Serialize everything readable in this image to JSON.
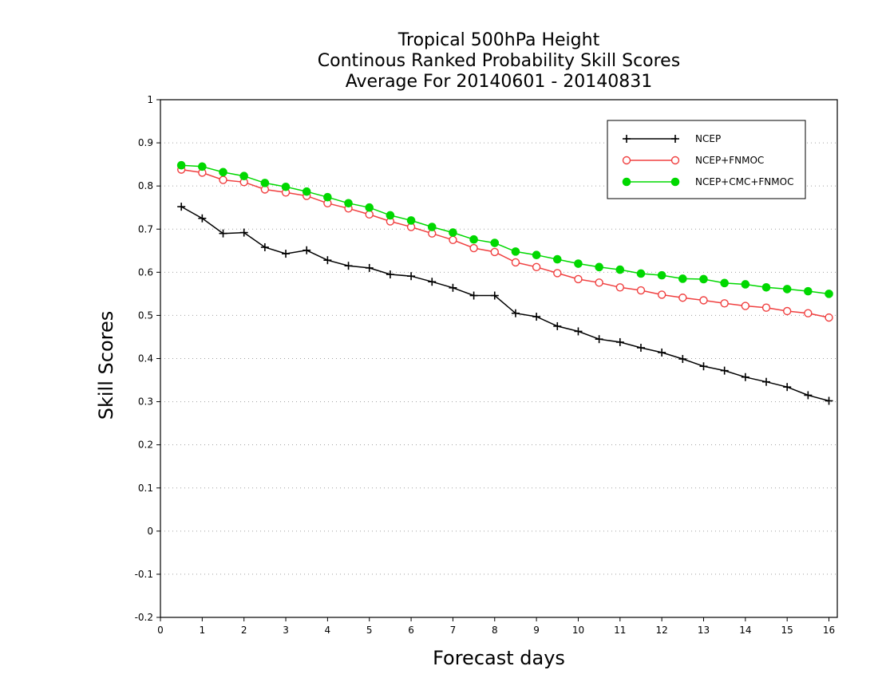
{
  "chart_data": {
    "type": "line",
    "title_lines": [
      "Tropical 500hPa Height",
      "Continous Ranked Probability Skill Scores",
      "Average For 20140601 - 20140831"
    ],
    "xlabel": "Forecast days",
    "ylabel": "Skill Scores",
    "xlim": [
      0,
      16.2
    ],
    "ylim": [
      -0.2,
      1.0
    ],
    "x_ticks": [
      "0",
      "1",
      "2",
      "3",
      "4",
      "5",
      "6",
      "7",
      "8",
      "9",
      "10",
      "11",
      "12",
      "13",
      "14",
      "15",
      "16"
    ],
    "y_ticks": [
      "1",
      "0.9",
      "0.8",
      "0.7",
      "0.6",
      "0.5",
      "0.4",
      "0.3",
      "0.2",
      "0.1",
      "0",
      "-0.1",
      "-0.2"
    ],
    "grid": "horizontal dotted",
    "legend_position": "top-right",
    "x": [
      0.5,
      1,
      1.5,
      2,
      2.5,
      3,
      3.5,
      4,
      4.5,
      5,
      5.5,
      6,
      6.5,
      7,
      7.5,
      8,
      8.5,
      9,
      9.5,
      10,
      10.5,
      11,
      11.5,
      12,
      12.5,
      13,
      13.5,
      14,
      14.5,
      15,
      15.5,
      16
    ],
    "series": [
      {
        "name": "NCEP",
        "color": "#000000",
        "marker": "plus",
        "values": [
          0.752,
          0.725,
          0.69,
          0.692,
          0.658,
          0.643,
          0.651,
          0.628,
          0.615,
          0.61,
          0.595,
          0.591,
          0.578,
          0.564,
          0.546,
          0.546,
          0.505,
          0.497,
          0.475,
          0.463,
          0.445,
          0.438,
          0.425,
          0.414,
          0.399,
          0.382,
          0.372,
          0.357,
          0.346,
          0.334,
          0.315,
          0.302
        ]
      },
      {
        "name": "NCEP+FNMOC",
        "color": "#f04040",
        "marker": "open-circle",
        "values": [
          0.838,
          0.831,
          0.814,
          0.809,
          0.792,
          0.785,
          0.777,
          0.76,
          0.748,
          0.734,
          0.718,
          0.705,
          0.69,
          0.675,
          0.656,
          0.647,
          0.623,
          0.612,
          0.598,
          0.584,
          0.576,
          0.565,
          0.558,
          0.548,
          0.541,
          0.535,
          0.528,
          0.522,
          0.518,
          0.51,
          0.505,
          0.495
        ]
      },
      {
        "name": "NCEP+CMC+FNMOC",
        "color": "#00d800",
        "marker": "filled-circle",
        "values": [
          0.848,
          0.845,
          0.832,
          0.823,
          0.807,
          0.798,
          0.787,
          0.774,
          0.76,
          0.75,
          0.732,
          0.72,
          0.705,
          0.692,
          0.676,
          0.668,
          0.648,
          0.64,
          0.63,
          0.62,
          0.612,
          0.606,
          0.597,
          0.593,
          0.585,
          0.584,
          0.575,
          0.572,
          0.565,
          0.561,
          0.556,
          0.55
        ]
      }
    ]
  }
}
